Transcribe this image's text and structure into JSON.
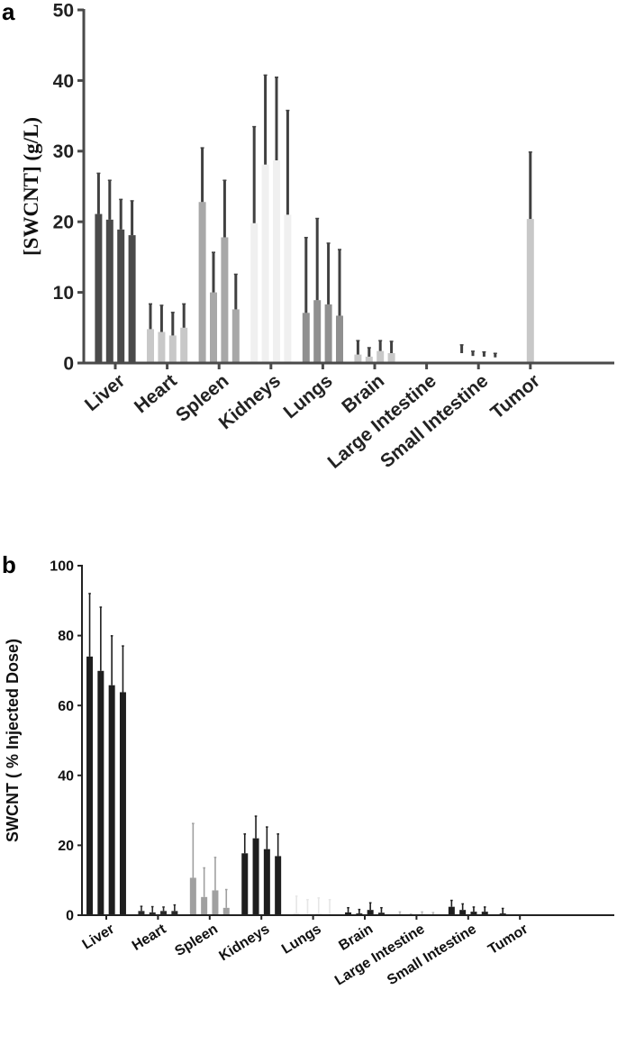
{
  "chart_data": [
    {
      "panel": "a",
      "type": "bar",
      "ylabel": "[SWCNT]  (g/L)",
      "ylim": [
        0,
        50
      ],
      "yticks": [
        0,
        10,
        20,
        30,
        40,
        50
      ],
      "grid": false,
      "error_color": "#404040",
      "categories": [
        "Liver",
        "Heart",
        "Spleen",
        "Kidneys",
        "Lungs",
        "Brain",
        "Large Intestine",
        "Small Intestine",
        "Tumor"
      ],
      "groups": [
        {
          "category": "Liver",
          "color": "#4a4a4a",
          "values": [
            21.1,
            20.3,
            18.9,
            18.1
          ],
          "error_upper": [
            26.9,
            25.9,
            23.2,
            23.0
          ]
        },
        {
          "category": "Heart",
          "color": "#c8c8c8",
          "values": [
            4.8,
            4.4,
            3.9,
            5.0
          ],
          "error_upper": [
            8.4,
            8.2,
            7.2,
            8.4
          ]
        },
        {
          "category": "Spleen",
          "color": "#a8a8a8",
          "values": [
            22.8,
            10.0,
            17.8,
            7.6
          ],
          "error_upper": [
            30.5,
            15.7,
            25.9,
            12.6
          ]
        },
        {
          "category": "Kidneys",
          "color": "#f0f0f0",
          "values": [
            19.8,
            28.1,
            28.7,
            21.0
          ],
          "error_upper": [
            33.5,
            40.8,
            40.5,
            35.8
          ]
        },
        {
          "category": "Lungs",
          "color": "#909090",
          "values": [
            7.1,
            8.9,
            8.3,
            6.7
          ],
          "error_upper": [
            17.8,
            20.5,
            17.0,
            16.1
          ]
        },
        {
          "category": "Brain",
          "color": "#c8c8c8",
          "values": [
            1.2,
            0.9,
            1.7,
            1.4
          ],
          "error_upper": [
            3.2,
            2.2,
            3.2,
            3.1
          ]
        },
        {
          "category": "Large Intestine",
          "color": "#c8c8c8",
          "values": [],
          "error_upper": []
        },
        {
          "category": "Small Intestine",
          "color": "#ffffff",
          "values": [
            1.4,
            1.0,
            0.9,
            0.8
          ],
          "error_upper": [
            2.6,
            1.7,
            1.6,
            1.4
          ]
        },
        {
          "category": "Tumor",
          "color": "#c8c8c8",
          "values": [
            20.4
          ],
          "error_upper": [
            29.9
          ]
        }
      ]
    },
    {
      "panel": "b",
      "type": "bar",
      "ylabel": "SWCNT ( % Injected  Dose)",
      "ylim": [
        0,
        100
      ],
      "yticks": [
        0,
        20,
        40,
        60,
        80,
        100
      ],
      "grid": false,
      "categories": [
        "Liver",
        "Heart",
        "Spleen",
        "Kidneys",
        "Lungs",
        "Brain",
        "Large Intestine",
        "Small Intestine",
        "Tumor"
      ],
      "groups": [
        {
          "category": "Liver",
          "color": "#1e1e1e",
          "values": [
            74.0,
            69.9,
            65.8,
            63.8
          ],
          "error_upper": [
            92.1,
            88.2,
            80.0,
            77.1
          ]
        },
        {
          "category": "Heart",
          "color": "#2a2a2a",
          "values": [
            1.2,
            0.8,
            1.2,
            1.2
          ],
          "error_upper": [
            2.6,
            2.5,
            2.4,
            3.0
          ]
        },
        {
          "category": "Spleen",
          "color": "#a0a0a0",
          "values": [
            10.7,
            5.2,
            7.1,
            2.1
          ],
          "error_upper": [
            26.3,
            13.6,
            16.6,
            7.4
          ]
        },
        {
          "category": "Kidneys",
          "color": "#1e1e1e",
          "values": [
            17.7,
            22.0,
            18.9,
            16.9
          ],
          "error_upper": [
            23.3,
            28.4,
            25.3,
            23.3
          ]
        },
        {
          "category": "Lungs",
          "color": "#e6e6e6",
          "values": [
            0.6,
            0.4,
            0.5,
            0.2
          ],
          "error_upper": [
            5.5,
            4.5,
            5.0,
            4.5
          ]
        },
        {
          "category": "Brain",
          "color": "#1e1e1e",
          "values": [
            0.8,
            0.5,
            1.5,
            0.7
          ],
          "error_upper": [
            2.2,
            1.7,
            3.6,
            2.2
          ]
        },
        {
          "category": "Large Intestine",
          "color": "#bbbbbb",
          "values": [
            0.3,
            0.1,
            0.3,
            0.2
          ],
          "error_upper": [
            1.0,
            0.4,
            1.0,
            0.8
          ]
        },
        {
          "category": "Small Intestine",
          "color": "#1e1e1e",
          "values": [
            2.4,
            1.5,
            1.0,
            1.0
          ],
          "error_upper": [
            4.3,
            3.3,
            2.4,
            2.4
          ]
        },
        {
          "category": "Tumor",
          "color": "#1e1e1e",
          "values": [
            0.5
          ],
          "error_upper": [
            2.0
          ]
        }
      ]
    }
  ]
}
